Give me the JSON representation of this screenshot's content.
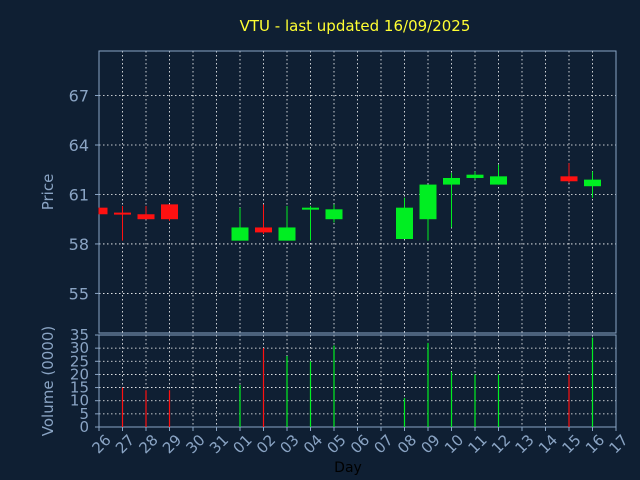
{
  "colors": {
    "background": "#0f1f33",
    "axis": "#8aa4c4",
    "grid": "#ffffff",
    "title": "#ffff33",
    "label": "#8aa4c4",
    "up": "#00ee22",
    "down": "#ff1111",
    "tick_text": "#8aa4c4"
  },
  "chart_data": [
    {
      "type": "candlestick",
      "title": "VTU - last updated 16/09/2025",
      "ylabel": "Price",
      "ylim": [
        52.6,
        69.7
      ],
      "yticks": [
        55,
        58,
        61,
        64,
        67
      ],
      "grid": true,
      "x_categories": [
        "26",
        "27",
        "28",
        "29",
        "30",
        "31",
        "01",
        "02",
        "03",
        "04",
        "05",
        "06",
        "07",
        "08",
        "09",
        "10",
        "11",
        "12",
        "13",
        "14",
        "15",
        "16",
        "17"
      ],
      "candles": [
        {
          "day": "26",
          "open": 60.2,
          "high": 60.2,
          "low": 59.8,
          "close": 59.8
        },
        {
          "day": "27",
          "open": 59.9,
          "high": 60.3,
          "low": 58.2,
          "close": 59.8
        },
        {
          "day": "28",
          "open": 59.8,
          "high": 60.3,
          "low": 59.5,
          "close": 59.5
        },
        {
          "day": "29",
          "open": 60.4,
          "high": 60.4,
          "low": 59.4,
          "close": 59.5
        },
        {
          "day": "01",
          "open": 58.2,
          "high": 60.2,
          "low": 58.2,
          "close": 59.0
        },
        {
          "day": "02",
          "open": 59.0,
          "high": 60.4,
          "low": 58.6,
          "close": 58.7
        },
        {
          "day": "03",
          "open": 58.2,
          "high": 60.3,
          "low": 58.2,
          "close": 59.0
        },
        {
          "day": "04",
          "open": 60.1,
          "high": 60.3,
          "low": 58.2,
          "close": 60.2
        },
        {
          "day": "05",
          "open": 59.5,
          "high": 60.4,
          "low": 59.3,
          "close": 60.1
        },
        {
          "day": "08",
          "open": 58.3,
          "high": 60.8,
          "low": 58.3,
          "close": 60.2
        },
        {
          "day": "09",
          "open": 59.5,
          "high": 61.6,
          "low": 58.2,
          "close": 61.6
        },
        {
          "day": "10",
          "open": 61.6,
          "high": 62.3,
          "low": 59.0,
          "close": 62.0
        },
        {
          "day": "11",
          "open": 62.0,
          "high": 62.4,
          "low": 61.9,
          "close": 62.2
        },
        {
          "day": "12",
          "open": 61.6,
          "high": 62.8,
          "low": 61.6,
          "close": 62.1
        },
        {
          "day": "15",
          "open": 62.1,
          "high": 62.9,
          "low": 61.7,
          "close": 61.8
        },
        {
          "day": "16",
          "open": 61.5,
          "high": 62.4,
          "low": 60.8,
          "close": 61.9
        }
      ]
    },
    {
      "type": "bar",
      "ylabel": "Volume (0000)",
      "xlabel": "Day",
      "ylim": [
        0,
        35
      ],
      "yticks": [
        0,
        5,
        10,
        15,
        20,
        25,
        30,
        35
      ],
      "grid": true,
      "categories": [
        "26",
        "27",
        "28",
        "29",
        "30",
        "31",
        "01",
        "02",
        "03",
        "04",
        "05",
        "06",
        "07",
        "08",
        "09",
        "10",
        "11",
        "12",
        "13",
        "14",
        "15",
        "16",
        "17"
      ],
      "bars": [
        {
          "day": "27",
          "value": 15,
          "direction": "down"
        },
        {
          "day": "28",
          "value": 14,
          "direction": "down"
        },
        {
          "day": "29",
          "value": 14,
          "direction": "down"
        },
        {
          "day": "01",
          "value": 16,
          "direction": "up"
        },
        {
          "day": "02",
          "value": 30,
          "direction": "down"
        },
        {
          "day": "03",
          "value": 27,
          "direction": "up"
        },
        {
          "day": "04",
          "value": 25,
          "direction": "up"
        },
        {
          "day": "05",
          "value": 31,
          "direction": "up"
        },
        {
          "day": "08",
          "value": 11,
          "direction": "up"
        },
        {
          "day": "09",
          "value": 32,
          "direction": "up"
        },
        {
          "day": "10",
          "value": 21,
          "direction": "up"
        },
        {
          "day": "11",
          "value": 20,
          "direction": "up"
        },
        {
          "day": "12",
          "value": 20,
          "direction": "up"
        },
        {
          "day": "15",
          "value": 20,
          "direction": "down"
        },
        {
          "day": "16",
          "value": 34,
          "direction": "up"
        }
      ]
    }
  ]
}
